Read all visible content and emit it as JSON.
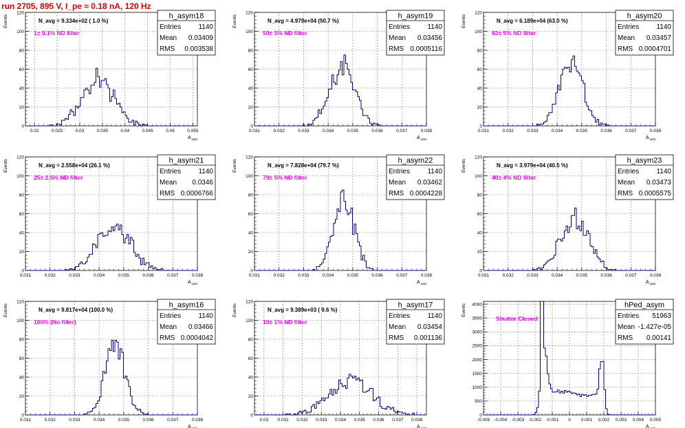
{
  "header": "run 2705,   895 V, I_pe ≈ 0.18 nA, 120 Hz",
  "colors": {
    "header": "#e00000",
    "histogram": "#00007f",
    "note": "#ff00ff",
    "grid": "#555555"
  },
  "chart_data": [
    {
      "type": "bar",
      "name": "h_asym18",
      "ylabel": "Events",
      "xlabel": "A",
      "xlabel_sub": "LED",
      "navg": "N_avg = 9.334e+02 ( 1.0 %)",
      "note": "1± 0.1% ND filter",
      "stats": {
        "entries": "1140",
        "mean": "0.03409",
        "rms": "0.003538"
      },
      "xlim": [
        0.018,
        0.056
      ],
      "ylim": [
        0,
        120
      ],
      "xticks": [
        0.02,
        0.025,
        0.03,
        0.035,
        0.04,
        0.045,
        0.05,
        0.055
      ],
      "xtick_labels": [
        "0.02",
        "0.025",
        "0.03",
        "0.035",
        "0.04",
        "0.045",
        "0.05",
        "0.055"
      ],
      "yticks": [
        0,
        20,
        40,
        60,
        80,
        100,
        120
      ],
      "dist": {
        "mean": 0.03409,
        "rms": 0.003538,
        "n": 1140,
        "bins": 100,
        "jag": 0.22,
        "seed": 18
      }
    },
    {
      "type": "bar",
      "name": "h_asym19",
      "ylabel": "Events",
      "xlabel": "A",
      "xlabel_sub": "LED",
      "navg": "N_avg = 4.979e+04 (50.7 %)",
      "note": "50± 5% ND filter",
      "stats": {
        "entries": "1140",
        "mean": "0.03456",
        "rms": "0.0005116"
      },
      "xlim": [
        0.031,
        0.038
      ],
      "ylim": [
        0,
        120
      ],
      "xticks": [
        0.031,
        0.032,
        0.033,
        0.034,
        0.035,
        0.036,
        0.037,
        0.038
      ],
      "xtick_labels": [
        "0.031",
        "0.032",
        "0.033",
        "0.034",
        "0.035",
        "0.036",
        "0.037",
        "0.038"
      ],
      "yticks": [
        0,
        20,
        40,
        60,
        80,
        100,
        120
      ],
      "dist": {
        "mean": 0.03456,
        "rms": 0.0005116,
        "n": 1140,
        "bins": 100,
        "jag": 0.18,
        "seed": 19
      }
    },
    {
      "type": "bar",
      "name": "h_asym20",
      "ylabel": "Events",
      "xlabel": "A",
      "xlabel_sub": "LED",
      "navg": "N_avg = 6.189e+04 (63.0 %)",
      "note": "63± 5% ND filter",
      "stats": {
        "entries": "1140",
        "mean": "0.03457",
        "rms": "0.0004701"
      },
      "xlim": [
        0.031,
        0.038
      ],
      "ylim": [
        0,
        120
      ],
      "xticks": [
        0.031,
        0.032,
        0.033,
        0.034,
        0.035,
        0.036,
        0.037,
        0.038
      ],
      "xtick_labels": [
        "0.031",
        "0.032",
        "0.033",
        "0.034",
        "0.035",
        "0.036",
        "0.037",
        "0.038"
      ],
      "yticks": [
        0,
        20,
        40,
        60,
        80,
        100,
        120
      ],
      "dist": {
        "mean": 0.03457,
        "rms": 0.0004701,
        "n": 1140,
        "bins": 100,
        "jag": 0.18,
        "seed": 20
      }
    },
    {
      "type": "bar",
      "name": "h_asym21",
      "ylabel": "Events",
      "xlabel": "A",
      "xlabel_sub": "LED",
      "navg": "N_avg = 2.558e+04 (26.1 %)",
      "note": "25± 2.5% ND filter",
      "stats": {
        "entries": "1140",
        "mean": "0.0346",
        "rms": "0.0006766"
      },
      "xlim": [
        0.031,
        0.038
      ],
      "ylim": [
        0,
        120
      ],
      "xticks": [
        0.031,
        0.032,
        0.033,
        0.034,
        0.035,
        0.036,
        0.037,
        0.038
      ],
      "xtick_labels": [
        "0.031",
        "0.032",
        "0.033",
        "0.034",
        "0.035",
        "0.036",
        "0.037",
        "0.038"
      ],
      "yticks": [
        0,
        20,
        40,
        60,
        80,
        100,
        120
      ],
      "dist": {
        "mean": 0.0346,
        "rms": 0.0006766,
        "n": 1140,
        "bins": 100,
        "jag": 0.2,
        "seed": 21
      }
    },
    {
      "type": "bar",
      "name": "h_asym22",
      "ylabel": "Events",
      "xlabel": "A",
      "xlabel_sub": "LED",
      "navg": "N_avg = 7.828e+04 (79.7 %)",
      "note": "79± 5% ND filter",
      "stats": {
        "entries": "1140",
        "mean": "0.03462",
        "rms": "0.0004228"
      },
      "xlim": [
        0.031,
        0.038
      ],
      "ylim": [
        0,
        120
      ],
      "xticks": [
        0.031,
        0.032,
        0.033,
        0.034,
        0.035,
        0.036,
        0.037,
        0.038
      ],
      "xtick_labels": [
        "0.031",
        "0.032",
        "0.033",
        "0.034",
        "0.035",
        "0.036",
        "0.037",
        "0.038"
      ],
      "yticks": [
        0,
        20,
        40,
        60,
        80,
        100,
        120
      ],
      "dist": {
        "mean": 0.03462,
        "rms": 0.0004228,
        "n": 1140,
        "bins": 100,
        "jag": 0.18,
        "seed": 22
      }
    },
    {
      "type": "bar",
      "name": "h_asym23",
      "ylabel": "Events",
      "xlabel": "A",
      "xlabel_sub": "LED",
      "navg": "N_avg = 3.979e+04 (40.5 %)",
      "note": "40± 4% ND filter",
      "stats": {
        "entries": "1140",
        "mean": "0.03473",
        "rms": "0.0005575"
      },
      "xlim": [
        0.031,
        0.038
      ],
      "ylim": [
        0,
        120
      ],
      "xticks": [
        0.031,
        0.032,
        0.033,
        0.034,
        0.035,
        0.036,
        0.037,
        0.038
      ],
      "xtick_labels": [
        "0.031",
        "0.032",
        "0.033",
        "0.034",
        "0.035",
        "0.036",
        "0.037",
        "0.038"
      ],
      "yticks": [
        0,
        20,
        40,
        60,
        80,
        100,
        120
      ],
      "dist": {
        "mean": 0.03473,
        "rms": 0.0005575,
        "n": 1140,
        "bins": 100,
        "jag": 0.2,
        "seed": 23
      }
    },
    {
      "type": "bar",
      "name": "h_asym16",
      "ylabel": "Events",
      "xlabel": "A",
      "xlabel_sub": "LED",
      "navg": "N_avg = 9.817e+04 (100.0 %)",
      "note": "100% (No filter)",
      "stats": {
        "entries": "1140",
        "mean": "0.03466",
        "rms": "0.0004042"
      },
      "xlim": [
        0.031,
        0.038
      ],
      "ylim": [
        0,
        120
      ],
      "xticks": [
        0.031,
        0.032,
        0.033,
        0.034,
        0.035,
        0.036,
        0.037,
        0.038
      ],
      "xtick_labels": [
        "0.031",
        "0.032",
        "0.033",
        "0.034",
        "0.035",
        "0.036",
        "0.037",
        "0.038"
      ],
      "yticks": [
        0,
        20,
        40,
        60,
        80,
        100,
        120
      ],
      "dist": {
        "mean": 0.03466,
        "rms": 0.0004042,
        "n": 1140,
        "bins": 100,
        "jag": 0.18,
        "seed": 16
      }
    },
    {
      "type": "bar",
      "name": "h_asym17",
      "ylabel": "Events",
      "xlabel": "A",
      "xlabel_sub": "LED",
      "navg": "N_avg = 9.389e+03 ( 9.6 %)",
      "note": "10± 1% ND filter",
      "stats": {
        "entries": "1140",
        "mean": "0.03454",
        "rms": "0.001136"
      },
      "xlim": [
        0.0295,
        0.0385
      ],
      "ylim": [
        0,
        120
      ],
      "xticks": [
        0.03,
        0.031,
        0.032,
        0.033,
        0.034,
        0.035,
        0.036,
        0.037,
        0.038
      ],
      "xtick_labels": [
        "0.03",
        "0.031",
        "0.032",
        "0.033",
        "0.034",
        "0.035",
        "0.036",
        "0.037",
        "0.038"
      ],
      "yticks": [
        0,
        20,
        40,
        60,
        80,
        100,
        120
      ],
      "dist": {
        "mean": 0.03454,
        "rms": 0.001136,
        "n": 1140,
        "bins": 100,
        "jag": 0.25,
        "seed": 17
      }
    },
    {
      "type": "bar",
      "name": "hPed_asym",
      "ylabel": "Events",
      "xlabel": "A",
      "xlabel_sub": "LED",
      "navg": "",
      "note": "Shutter Closed",
      "stats": {
        "entries": "51963",
        "mean": "-1.427e-05",
        "rms": "0.00141"
      },
      "xlim": [
        -0.005,
        0.005
      ],
      "ylim": [
        0,
        4100
      ],
      "xticks": [
        -0.005,
        -0.004,
        -0.003,
        -0.002,
        -0.001,
        0,
        0.001,
        0.002,
        0.003,
        0.004,
        0.005
      ],
      "xtick_labels": [
        "-0.005",
        "-0.004",
        "-0.003",
        "-0.002",
        "-0.001",
        "0",
        "0.001",
        "0.002",
        "0.003",
        "0.004",
        "0.005"
      ],
      "yticks": [
        0,
        500,
        1000,
        1500,
        2000,
        2500,
        3000,
        3500,
        4000
      ],
      "ped": true
    }
  ]
}
